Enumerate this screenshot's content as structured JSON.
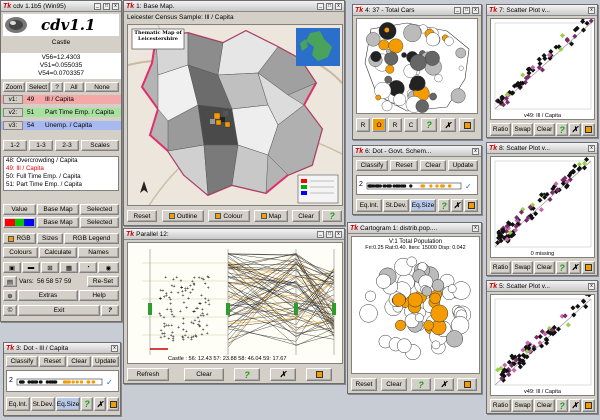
{
  "cdv": {
    "title": "cdv 1.1b5 (Win95)",
    "logo_text": "cdv1.1",
    "location": "Castle",
    "v56": "V56=12.4303",
    "v51": "V51=0.055035",
    "v54": "V54=0.0703357",
    "row1": [
      "Zoom",
      "Select",
      "?",
      "All",
      "None"
    ],
    "vars": [
      {
        "tag": "v1:",
        "num": "49",
        "name": "Ill / Capita",
        "color": "#f4a8a8"
      },
      {
        "tag": "v2:",
        "num": "51",
        "name": "Part Time Emp. / Capita",
        "color": "#a8e0a0"
      },
      {
        "tag": "v3:",
        "num": "54",
        "name": "Unemp. / Capita",
        "color": "#a8b8f0"
      }
    ],
    "row2": [
      "1-2",
      "1-3",
      "2-3",
      "Scales"
    ],
    "list": [
      "48: Overcrowding / Capita",
      "49: Ill / Capita",
      "50: Full Time Emp. / Capita",
      "51: Part Time Emp. / Capita"
    ],
    "grid": [
      [
        "Value",
        "Base Map",
        "Selected"
      ],
      [
        "",
        "Base Map",
        "Selected"
      ],
      [
        "RGB",
        "RGB",
        "Sizes",
        "RGB Legend"
      ],
      [
        "Colours",
        "Calculate",
        "Names"
      ]
    ],
    "vars_label": "Vars:",
    "vars_value": "56 58 57 59",
    "reset_label": "Re-Set",
    "extras": "Extras",
    "help": "Help",
    "exit": "Exit",
    "q": "?"
  },
  "basemap": {
    "title": "1: Base Map.",
    "sample": "Leicester Census Sample:",
    "var": "Ill / Capita",
    "map_title": "Thematic Map of Leicestershire",
    "reset": "Reset",
    "outline": "Outline",
    "colour": "Colour",
    "map": "Map",
    "clear": "Clear"
  },
  "cars": {
    "title": "4: 37 - Total Cars",
    "btns": [
      "R",
      "O",
      "R",
      "C"
    ]
  },
  "dot6": {
    "title": "6: Dot - Govt. Schem...",
    "btns": [
      "Classify",
      "Reset",
      "Clear",
      "Update"
    ],
    "axis": "2",
    "b2": [
      "Eq.Int.",
      "St.Dev.",
      "Eq.Size"
    ]
  },
  "parallel": {
    "title": "Parallel 12:",
    "readout": "Castle    : 56: 12.43  57: 23.88  58: 46.04  59: 17.67",
    "refresh": "Refresh",
    "clear": "Clear"
  },
  "carto": {
    "title": "Cartogram 1: distrib.pop....",
    "caption": "V:1 Total Population",
    "params": "Fri:0.25 Rat:0.40. Iters: 15000 Disp: 0.042",
    "reset": "Reset",
    "clear": "Clear"
  },
  "dot3": {
    "title": "3: Dot - Ill / Capita",
    "btns": [
      "Classify",
      "Reset",
      "Clear",
      "Update"
    ],
    "axis": "2",
    "b2": [
      "Eq.Int.",
      "St.Dev.",
      "Eq.Size"
    ]
  },
  "sc7": {
    "title": "7: Scatter Plot v...",
    "xlabel": "v49: Ill / Capita",
    "btns": [
      "Ratio",
      "Swap",
      "Clear"
    ]
  },
  "sc8": {
    "title": "8: Scatter Plot v...",
    "xlabel": "0 missing",
    "btns": [
      "Ratio",
      "Swap",
      "Clear"
    ]
  },
  "sc5": {
    "title": "5: Scatter Plot v...",
    "xlabel": "v49: Ill / Capita",
    "btns": [
      "Ratio",
      "Swap",
      "Clear"
    ]
  }
}
